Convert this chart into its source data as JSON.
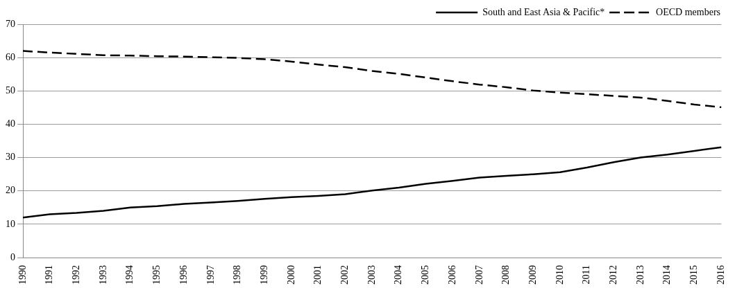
{
  "chart_data": {
    "type": "line",
    "categories": [
      "1990",
      "1991",
      "1992",
      "1993",
      "1994",
      "1995",
      "1996",
      "1997",
      "1998",
      "1999",
      "2000",
      "2001",
      "2002",
      "2003",
      "2004",
      "2005",
      "2006",
      "2007",
      "2008",
      "2009",
      "2010",
      "2011",
      "2012",
      "2013",
      "2014",
      "2015",
      "2016"
    ],
    "series": [
      {
        "name": "South and East Asia & Pacific*",
        "color": "#000000",
        "line_style": "solid",
        "values": [
          12,
          13,
          13.4,
          14,
          15,
          15.4,
          16.1,
          16.5,
          17,
          17.6,
          18.1,
          18.5,
          19,
          20.1,
          21,
          22.1,
          23,
          24,
          24.5,
          25,
          25.6,
          27,
          28.6,
          30,
          30.9,
          32,
          33.1
        ]
      },
      {
        "name": "OECD members",
        "color": "#000000",
        "line_style": "dashed",
        "values": [
          62,
          61.5,
          61.1,
          60.7,
          60.6,
          60.4,
          60.3,
          60.1,
          59.9,
          59.5,
          58.8,
          57.9,
          57.1,
          56,
          55.1,
          54,
          52.9,
          51.9,
          51.1,
          50.1,
          49.5,
          49,
          48.5,
          48,
          47,
          45.9,
          45.1
        ]
      }
    ],
    "ylim": [
      0,
      70
    ],
    "yticks": [
      0,
      10,
      20,
      30,
      40,
      50,
      60,
      70
    ],
    "grid": "y",
    "legend": "top right",
    "marker": "none"
  }
}
